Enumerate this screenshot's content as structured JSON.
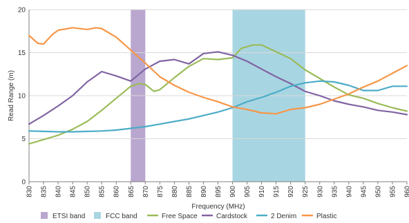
{
  "chart_data": {
    "type": "line",
    "xlabel": "Frequency (MHz)",
    "ylabel": "Read Range (m)",
    "xlim": [
      830,
      960
    ],
    "ylim": [
      0,
      20
    ],
    "x_ticks": [
      830,
      835,
      840,
      845,
      850,
      855,
      860,
      865,
      870,
      875,
      880,
      885,
      890,
      895,
      900,
      905,
      910,
      915,
      920,
      925,
      930,
      935,
      940,
      945,
      950,
      955,
      960
    ],
    "y_ticks": [
      0,
      5,
      10,
      15,
      20
    ],
    "grid": "horizontal",
    "legend_position": "bottom",
    "bands": [
      {
        "name": "ETSI band",
        "from": 865,
        "to": 870,
        "color": "#b9a7cf"
      },
      {
        "name": "FCC  band",
        "from": 900,
        "to": 925,
        "color": "#a8d5e2"
      }
    ],
    "series": [
      {
        "name": "Free Space",
        "color": "#9bbb59",
        "x": [
          830,
          835,
          840,
          845,
          850,
          855,
          860,
          865,
          868,
          870,
          873,
          875,
          880,
          885,
          890,
          895,
          900,
          903,
          907,
          910,
          915,
          920,
          925,
          930,
          935,
          940,
          945,
          950,
          955,
          960
        ],
        "y": [
          4.4,
          4.9,
          5.4,
          6.1,
          7.0,
          8.3,
          9.7,
          11.1,
          11.4,
          11.3,
          10.5,
          10.7,
          12.1,
          13.4,
          14.3,
          14.2,
          14.4,
          15.5,
          15.9,
          15.9,
          15.1,
          14.3,
          13.0,
          12.0,
          11.0,
          10.1,
          9.7,
          9.1,
          8.6,
          8.2
        ]
      },
      {
        "name": "Cardstock",
        "color": "#8064a2",
        "x": [
          830,
          835,
          840,
          845,
          850,
          855,
          860,
          865,
          870,
          875,
          880,
          885,
          890,
          895,
          900,
          905,
          910,
          915,
          920,
          925,
          930,
          935,
          940,
          945,
          950,
          955,
          960
        ],
        "y": [
          6.7,
          7.7,
          8.8,
          10.0,
          11.6,
          12.8,
          12.3,
          11.7,
          13.1,
          14.0,
          14.2,
          13.7,
          14.9,
          15.1,
          14.7,
          14.0,
          13.1,
          12.2,
          11.4,
          10.5,
          10.0,
          9.4,
          9.0,
          8.7,
          8.3,
          8.1,
          7.8
        ]
      },
      {
        "name": "2 Denim",
        "color": "#4bacc6",
        "x": [
          830,
          835,
          840,
          845,
          850,
          855,
          860,
          865,
          870,
          875,
          880,
          885,
          890,
          895,
          900,
          905,
          910,
          915,
          920,
          925,
          930,
          935,
          940,
          945,
          950,
          955,
          960
        ],
        "y": [
          5.9,
          5.85,
          5.8,
          5.8,
          5.85,
          5.9,
          6.0,
          6.2,
          6.4,
          6.7,
          7.0,
          7.3,
          7.7,
          8.1,
          8.6,
          9.3,
          9.8,
          10.4,
          11.1,
          11.5,
          11.7,
          11.6,
          11.2,
          10.6,
          10.6,
          11.1,
          11.1
        ]
      },
      {
        "name": "Plastic",
        "color": "#f79646",
        "x": [
          830,
          833,
          835,
          838,
          840,
          845,
          850,
          853,
          855,
          860,
          865,
          870,
          875,
          880,
          885,
          890,
          895,
          900,
          905,
          910,
          915,
          920,
          925,
          930,
          935,
          940,
          945,
          950,
          955,
          960
        ],
        "y": [
          17.0,
          16.1,
          16.0,
          17.1,
          17.6,
          17.9,
          17.7,
          17.9,
          17.8,
          16.8,
          15.3,
          13.8,
          12.2,
          11.2,
          10.4,
          9.8,
          9.3,
          8.7,
          8.4,
          8.0,
          7.9,
          8.4,
          8.6,
          9.0,
          9.6,
          10.2,
          11.0,
          11.7,
          12.6,
          13.5
        ]
      }
    ]
  }
}
